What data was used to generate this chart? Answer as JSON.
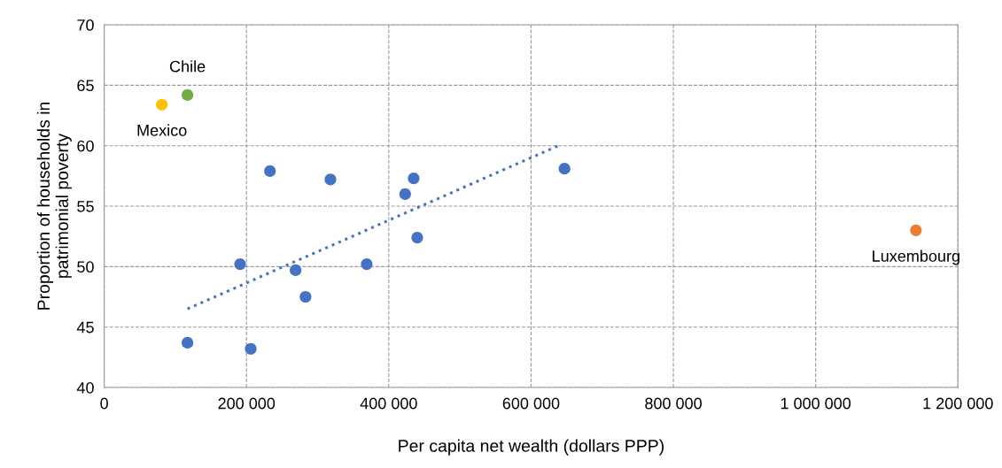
{
  "chart_data": {
    "type": "scatter",
    "xlabel": "Per capita net wealth (dollars PPP)",
    "ylabel": "Proportion of households in\npatrimonial poverty",
    "xlim": [
      0,
      1200000
    ],
    "xticks": [
      0,
      {
        "value": 200000,
        "label": "200 000"
      },
      {
        "value": 400000,
        "label": "400 000"
      },
      {
        "value": 600000,
        "label": "600 000"
      },
      {
        "value": 800000,
        "label": "800 000"
      },
      {
        "value": 1000000,
        "label": "1 000 000"
      },
      {
        "value": 1200000,
        "label": "1 200 000"
      }
    ],
    "ylim": [
      40,
      70
    ],
    "yticks": [
      40,
      45,
      50,
      55,
      60,
      65,
      70
    ],
    "grid": true,
    "marker": "circle",
    "series": [
      {
        "color": "#4472c4",
        "x": [
          233000,
          318000,
          435000,
          423000,
          647000,
          440000,
          191000,
          269000,
          369000,
          283000,
          117000,
          206000
        ],
        "values": [
          57.9,
          57.2,
          57.3,
          56.0,
          58.1,
          52.4,
          50.2,
          49.7,
          50.2,
          47.5,
          43.7,
          43.2
        ]
      },
      {
        "name": "Mexico",
        "color": "#ffc000",
        "x": [
          81000
        ],
        "values": [
          63.4
        ]
      },
      {
        "name": "Chile",
        "color": "#70ad47",
        "x": [
          117000
        ],
        "values": [
          64.2
        ]
      },
      {
        "name": "Luxembourg",
        "color": "#ed7d31",
        "x": [
          1141000
        ],
        "values": [
          53.0
        ]
      },
      {
        "type": "line",
        "color": "#4472c4",
        "line_style": "dotted",
        "marker": "none",
        "x": [
          117000,
          642000
        ],
        "values": [
          46.5,
          60.1
        ]
      }
    ]
  }
}
